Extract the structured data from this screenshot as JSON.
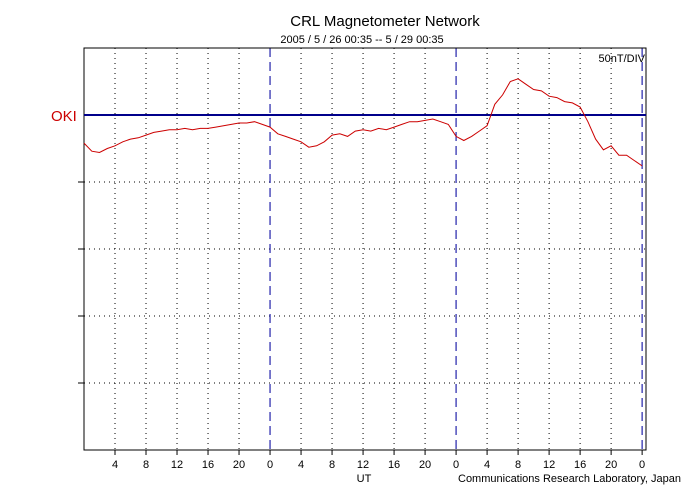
{
  "chart_data": {
    "type": "line",
    "title": "CRL Magnetometer Network",
    "subtitle": "2005 / 5 / 26   00:35 --  5 / 29   00:35",
    "scale_label": "50nT/DIV",
    "station_label": "OKI",
    "xlabel": "UT",
    "credit": "Communications Research Laboratory, Japan",
    "x_tick_labels": [
      "4",
      "8",
      "12",
      "16",
      "20",
      "0",
      "4",
      "8",
      "12",
      "16",
      "20",
      "0",
      "4",
      "8",
      "12",
      "16",
      "20",
      "0"
    ],
    "x_ticks_hours": [
      4,
      8,
      12,
      16,
      20,
      24,
      28,
      32,
      36,
      40,
      44,
      48,
      52,
      56,
      60,
      64,
      68,
      72
    ],
    "xlim_hours": [
      0,
      72.5
    ],
    "day_boundaries_hours": [
      24,
      48,
      72
    ],
    "baseline_nT": 0,
    "ylim_nT": [
      -250,
      50
    ],
    "grid": true,
    "series": [
      {
        "color": "#cc0000",
        "x_hours": [
          0,
          1,
          2,
          3,
          4,
          5,
          6,
          7,
          8,
          9,
          10,
          11,
          12,
          13,
          14,
          15,
          16,
          17,
          18,
          19,
          20,
          21,
          22,
          23,
          24,
          25,
          26,
          27,
          28,
          29,
          30,
          31,
          32,
          33,
          34,
          35,
          36,
          37,
          38,
          39,
          40,
          41,
          42,
          43,
          44,
          45,
          46,
          47,
          48,
          49,
          50,
          51,
          52,
          53,
          54,
          55,
          56,
          57,
          58,
          59,
          60,
          61,
          62,
          63,
          64,
          65,
          66,
          67,
          68,
          69,
          70,
          71,
          72
        ],
        "values": [
          -21,
          -27,
          -28,
          -25,
          -23,
          -20,
          -18,
          -17,
          -15,
          -13,
          -12,
          -11,
          -11,
          -10,
          -11,
          -10,
          -10,
          -9,
          -8,
          -7,
          -6,
          -6,
          -5,
          -7,
          -9,
          -14,
          -16,
          -18,
          -20,
          -24,
          -23,
          -20,
          -15,
          -14,
          -16,
          -12,
          -11,
          -12,
          -10,
          -11,
          -9,
          -7,
          -5,
          -5,
          -4,
          -3,
          -5,
          -7,
          -16,
          -19,
          -16,
          -12,
          -8,
          8,
          15,
          25,
          27,
          23,
          19,
          18,
          14,
          13,
          10,
          9,
          6,
          -5,
          -18,
          -26,
          -23,
          -30,
          -30,
          -34,
          -38
        ]
      }
    ]
  },
  "colors": {
    "baseline": "#00008b",
    "day_divider": "#2222aa",
    "trace": "#cc0000",
    "station_label": "#cc0000"
  }
}
